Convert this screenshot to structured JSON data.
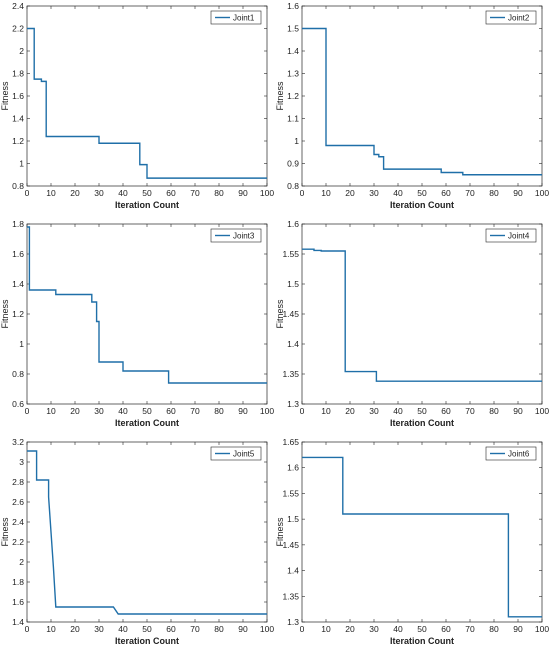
{
  "chart_data": [
    {
      "type": "line",
      "title": "",
      "xlabel": "Iteration Count",
      "ylabel": "Fitness",
      "xlim": [
        0,
        100
      ],
      "ylim": [
        0.8,
        2.4
      ],
      "xticks": [
        "0",
        "10",
        "20",
        "30",
        "40",
        "50",
        "60",
        "70",
        "80",
        "90",
        "100"
      ],
      "yticks": [
        "0.8",
        "1",
        "1.2",
        "1.4",
        "1.6",
        "1.8",
        "2",
        "2.2",
        "2.4"
      ],
      "color": "#1f6fa8",
      "legend_position": "top-right",
      "series": [
        {
          "name": "Joint1",
          "x": [
            0,
            3,
            3,
            6,
            6,
            8,
            8,
            30,
            30,
            47,
            47,
            50,
            50,
            100
          ],
          "y": [
            2.2,
            2.2,
            1.75,
            1.75,
            1.73,
            1.73,
            1.24,
            1.24,
            1.18,
            1.18,
            0.99,
            0.99,
            0.87,
            0.87
          ]
        }
      ]
    },
    {
      "type": "line",
      "title": "",
      "xlabel": "Iteration Count",
      "ylabel": "Fitness",
      "xlim": [
        0,
        100
      ],
      "ylim": [
        0.8,
        1.6
      ],
      "xticks": [
        "0",
        "10",
        "20",
        "30",
        "40",
        "50",
        "60",
        "70",
        "80",
        "90",
        "100"
      ],
      "yticks": [
        "0.8",
        "0.9",
        "1",
        "1.1",
        "1.2",
        "1.3",
        "1.4",
        "1.5",
        "1.6"
      ],
      "color": "#1f6fa8",
      "legend_position": "top-right",
      "series": [
        {
          "name": "Joint2",
          "x": [
            0,
            10,
            10,
            30,
            30,
            32,
            32,
            34,
            34,
            58,
            58,
            67,
            67,
            100
          ],
          "y": [
            1.5,
            1.5,
            0.98,
            0.98,
            0.94,
            0.94,
            0.93,
            0.93,
            0.875,
            0.875,
            0.86,
            0.86,
            0.85,
            0.85
          ]
        }
      ]
    },
    {
      "type": "line",
      "title": "",
      "xlabel": "Iteration Count",
      "ylabel": "Fitness",
      "xlim": [
        0,
        100
      ],
      "ylim": [
        0.6,
        1.8
      ],
      "xticks": [
        "0",
        "10",
        "20",
        "30",
        "40",
        "50",
        "60",
        "70",
        "80",
        "90",
        "100"
      ],
      "yticks": [
        "0.6",
        "0.8",
        "1",
        "1.2",
        "1.4",
        "1.6",
        "1.8"
      ],
      "color": "#1f6fa8",
      "legend_position": "top-right",
      "series": [
        {
          "name": "Joint3",
          "x": [
            0,
            1,
            1,
            12,
            12,
            27,
            27,
            29,
            29,
            30,
            30,
            38,
            38,
            40,
            40,
            59,
            59,
            100
          ],
          "y": [
            1.78,
            1.78,
            1.36,
            1.36,
            1.33,
            1.33,
            1.28,
            1.28,
            1.15,
            1.15,
            0.88,
            0.88,
            0.88,
            0.88,
            0.82,
            0.82,
            0.74,
            0.74
          ]
        }
      ]
    },
    {
      "type": "line",
      "title": "",
      "xlabel": "Iteration Count",
      "ylabel": "Fitness",
      "xlim": [
        0,
        100
      ],
      "ylim": [
        1.3,
        1.6
      ],
      "xticks": [
        "0",
        "10",
        "20",
        "30",
        "40",
        "50",
        "60",
        "70",
        "80",
        "90",
        "100"
      ],
      "yticks": [
        "1.3",
        "1.35",
        "1.4",
        "1.45",
        "1.5",
        "1.55",
        "1.6"
      ],
      "color": "#1f6fa8",
      "legend_position": "top-right",
      "series": [
        {
          "name": "Joint4",
          "x": [
            0,
            5,
            5,
            8,
            8,
            18,
            18,
            31,
            31,
            100
          ],
          "y": [
            1.558,
            1.558,
            1.556,
            1.556,
            1.555,
            1.555,
            1.354,
            1.354,
            1.338,
            1.338
          ]
        }
      ]
    },
    {
      "type": "line",
      "title": "",
      "xlabel": "Iteration Count",
      "ylabel": "Fitness",
      "xlim": [
        0,
        100
      ],
      "ylim": [
        1.4,
        3.2
      ],
      "xticks": [
        "0",
        "10",
        "20",
        "30",
        "40",
        "50",
        "60",
        "70",
        "80",
        "90",
        "100"
      ],
      "yticks": [
        "1.4",
        "1.6",
        "1.8",
        "2",
        "2.2",
        "2.4",
        "2.6",
        "2.8",
        "3",
        "3.2"
      ],
      "color": "#1f6fa8",
      "legend_position": "top-right",
      "series": [
        {
          "name": "Joint5",
          "x": [
            0,
            4,
            4,
            9,
            9,
            10,
            11,
            12,
            12,
            36,
            38,
            38,
            100
          ],
          "y": [
            3.11,
            3.11,
            2.82,
            2.82,
            2.65,
            2.3,
            1.95,
            1.55,
            1.55,
            1.55,
            1.48,
            1.48,
            1.48
          ]
        }
      ]
    },
    {
      "type": "line",
      "title": "",
      "xlabel": "Iteration Count",
      "ylabel": "Fitness",
      "xlim": [
        0,
        100
      ],
      "ylim": [
        1.3,
        1.65
      ],
      "xticks": [
        "0",
        "10",
        "20",
        "30",
        "40",
        "50",
        "60",
        "70",
        "80",
        "90",
        "100"
      ],
      "yticks": [
        "1.3",
        "1.35",
        "1.4",
        "1.45",
        "1.5",
        "1.55",
        "1.6",
        "1.65"
      ],
      "color": "#1f6fa8",
      "legend_position": "top-right",
      "series": [
        {
          "name": "Joint6",
          "x": [
            0,
            17,
            17,
            86,
            86,
            100
          ],
          "y": [
            1.62,
            1.62,
            1.51,
            1.51,
            1.31,
            1.31
          ]
        }
      ]
    }
  ]
}
